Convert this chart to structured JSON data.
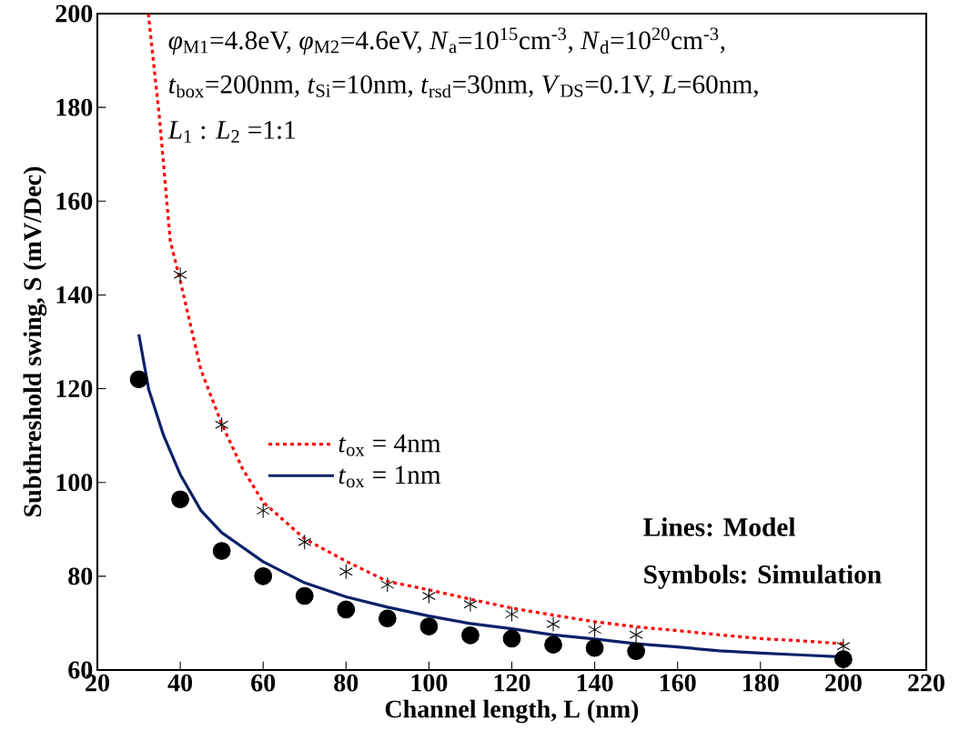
{
  "chart_data": {
    "type": "line",
    "xlabel": "Channel length, L (nm)",
    "ylabel": "Subthreshold swing, S (mV/Dec)",
    "xlim": [
      20,
      220
    ],
    "xticks": [
      20,
      40,
      60,
      80,
      100,
      120,
      140,
      160,
      180,
      200,
      220
    ],
    "ylim": [
      60,
      200
    ],
    "yticks": [
      60,
      80,
      100,
      120,
      140,
      160,
      180,
      200
    ],
    "grid": false,
    "legend": "center left",
    "annotations": [
      "*φ*$_{M1}$=4.8eV, *φ*$_{M2}$=4.6eV, *N*$_{a}$=10$^{15}$cm$^{-3}$, *N*$_{d}$=10$^{20}$cm$^{-3}$,",
      "*t*$_{box}$=200nm, *t*$_{Si}$=10nm, *t*$_{rsd}$=30nm, *V*$_{DS}$=0.1V, *L*=60nm,",
      "*L*$_{1}$ : *L*$_{2}$ =1:1",
      "Lines: Model",
      "Symbols: Simulation"
    ],
    "series": [
      {
        "name": "*t*$_{ox}$ = 4nm",
        "type": "line",
        "color": "#ff0000",
        "line_style": "dotted",
        "marker": "none",
        "x": [
          32.3,
          35,
          37.6,
          40,
          45,
          50,
          55,
          60,
          70,
          80,
          90,
          100,
          110,
          120,
          130,
          140,
          150,
          160,
          170,
          180,
          190,
          200
        ],
        "values": [
          200,
          177.6,
          151.5,
          143,
          124,
          112.5,
          103,
          95.8,
          88,
          83.2,
          78.9,
          77.1,
          75.1,
          73.2,
          71.7,
          70.3,
          69.2,
          68.4,
          67.5,
          66.7,
          66.2,
          65.6
        ]
      },
      {
        "name": "*t*$_{ox}$ = 1nm",
        "type": "line",
        "color": "#0a2168",
        "line_style": "solid",
        "marker": "none",
        "x": [
          30,
          32.4,
          36,
          40,
          45,
          50,
          60,
          70,
          80,
          90,
          100,
          110,
          120,
          130,
          140,
          150,
          160,
          170,
          180,
          190,
          200
        ],
        "values": [
          131.6,
          119.8,
          110,
          101.7,
          94,
          89.3,
          83.1,
          78.6,
          75.6,
          73.4,
          71.5,
          69.9,
          68.8,
          67.5,
          66.6,
          65.6,
          64.9,
          64.1,
          63.6,
          63.2,
          62.8
        ]
      },
      {
        "type": "scatter",
        "color": "#000000",
        "marker": "cross",
        "x": [
          40,
          50,
          60,
          70,
          80,
          90,
          100,
          110,
          120,
          130,
          140,
          150,
          200
        ],
        "values": [
          144.3,
          112.3,
          94,
          87.3,
          81,
          78.2,
          75.8,
          74,
          71.9,
          69.8,
          68.6,
          67.5,
          65.1
        ]
      },
      {
        "type": "scatter",
        "color": "#000000",
        "marker": "circle",
        "x": [
          30,
          40,
          50,
          60,
          70,
          80,
          90,
          100,
          110,
          120,
          130,
          140,
          150,
          200
        ],
        "values": [
          122,
          96.4,
          85.4,
          80,
          75.8,
          72.9,
          71,
          69.3,
          67.4,
          66.7,
          65.4,
          64.7,
          64,
          62.3
        ]
      }
    ]
  }
}
